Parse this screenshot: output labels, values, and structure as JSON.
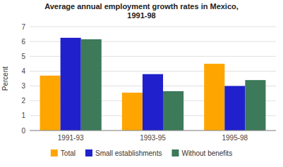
{
  "chart_data": {
    "type": "bar",
    "title": "Average annual employment growth rates in Mexico,\n1991-98",
    "ylabel": "Percent",
    "categories": [
      "1991-93",
      "1993-95",
      "1995-98"
    ],
    "series": [
      {
        "name": "Total",
        "color": "#FFA500",
        "values": [
          3.7,
          2.55,
          4.5
        ]
      },
      {
        "name": "Small establishments",
        "color": "#2020CC",
        "values": [
          6.25,
          3.8,
          3.0
        ]
      },
      {
        "name": "Without benefits",
        "color": "#3C7A5A",
        "values": [
          6.15,
          2.65,
          3.4
        ]
      }
    ],
    "ylim": [
      0,
      7
    ],
    "yticks": [
      0,
      1,
      2,
      3,
      4,
      5,
      6,
      7
    ],
    "grid": true,
    "legend": "bottom"
  }
}
